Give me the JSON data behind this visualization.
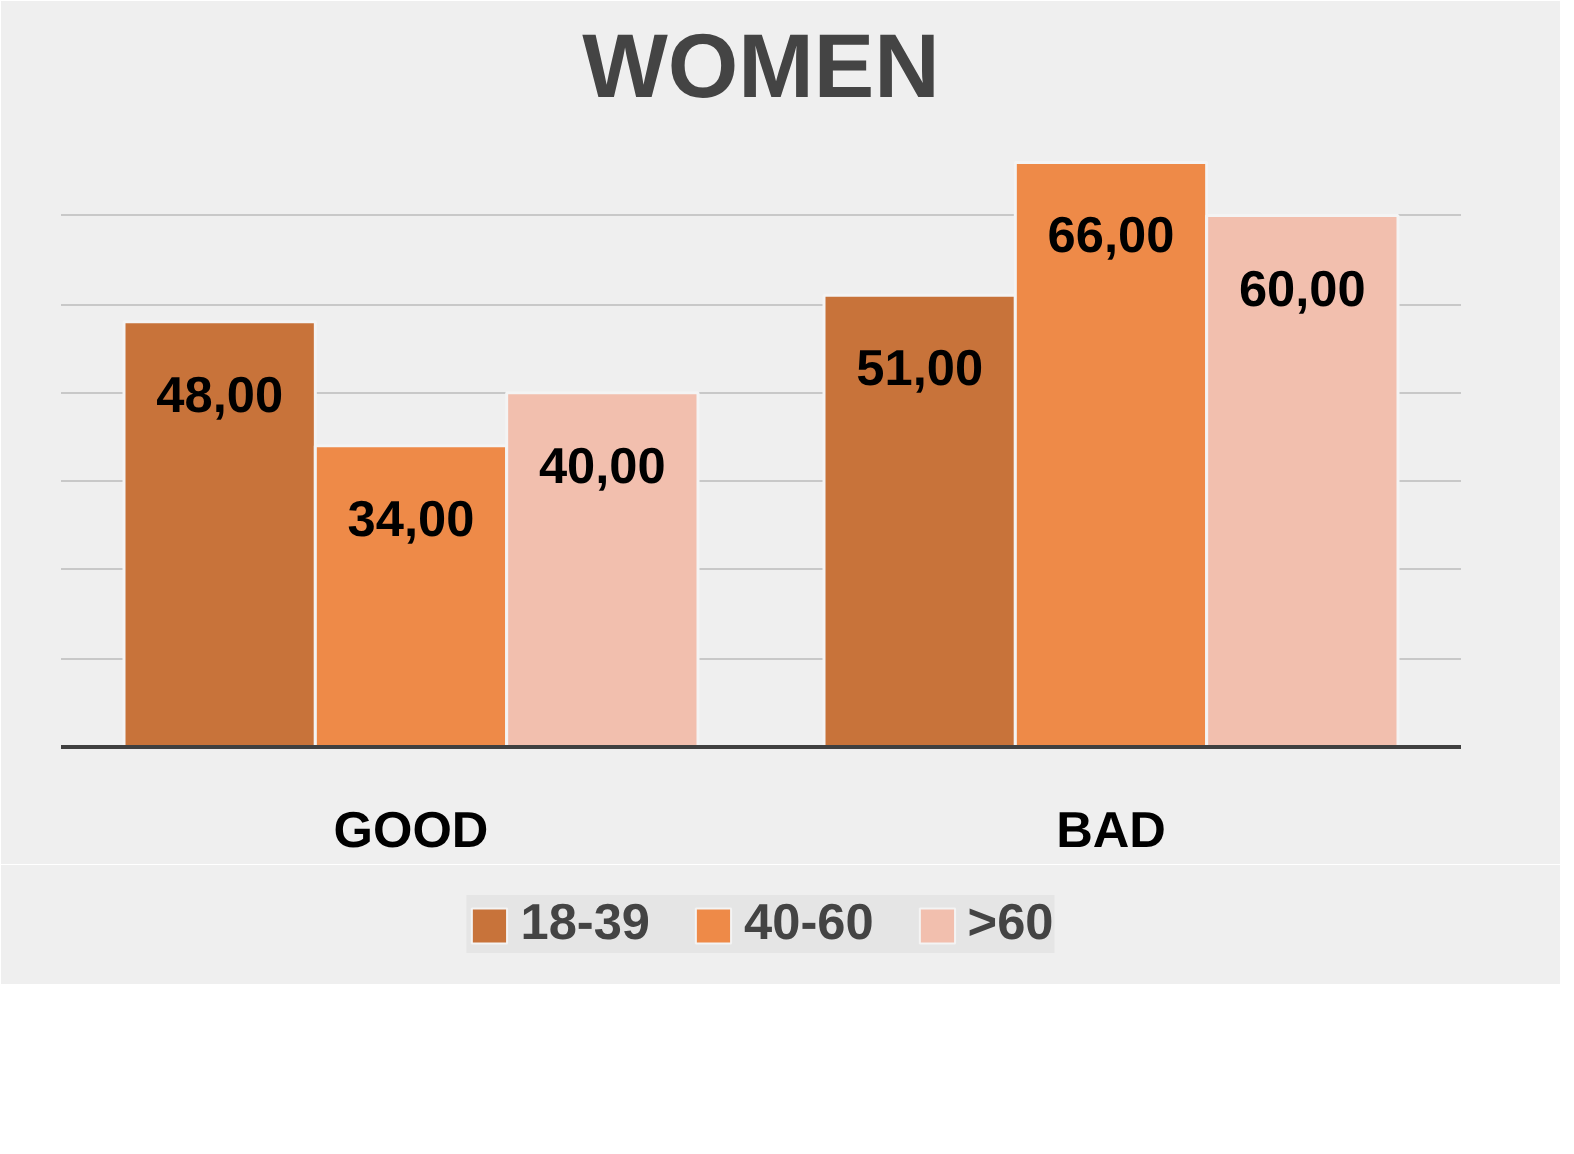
{
  "chart_data": {
    "type": "bar",
    "title": "WOMEN",
    "categories": [
      "GOOD",
      "BAD"
    ],
    "series": [
      {
        "name": "18-39",
        "color": "#c8733a",
        "values": [
          48,
          51
        ],
        "value_labels": [
          "48,00",
          "51,00"
        ]
      },
      {
        "name": "40-60",
        "color": "#ee8a48",
        "values": [
          34,
          66
        ],
        "value_labels": [
          "34,00",
          "66,00"
        ]
      },
      {
        "name": ">60",
        "color": "#f2bfae",
        "values": [
          40,
          60
        ],
        "value_labels": [
          "40,00",
          "60,00"
        ]
      }
    ],
    "ylim": [
      0,
      70
    ],
    "yticks": [
      0,
      {
        "value": 10,
        "label": null
      },
      {
        "value": 20,
        "label": null
      },
      {
        "value": 30,
        "label": null
      },
      {
        "value": 40,
        "label": null
      },
      {
        "value": 50,
        "label": null
      },
      {
        "value": 60,
        "label": null
      },
      {
        "value": 70,
        "label": null
      }
    ],
    "tick_labels": "x",
    "grid": "y",
    "legend": "bottom"
  }
}
